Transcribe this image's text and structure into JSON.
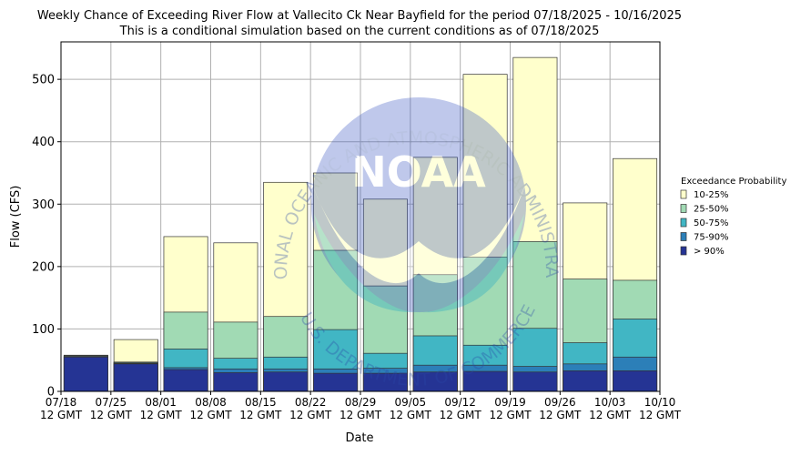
{
  "chart_data": {
    "type": "bar",
    "title": "Weekly Chance of Exceeding River Flow at Vallecito Ck Near Bayfield for the period 07/18/2025 - 10/16/2025",
    "subtitle": "This is a conditional simulation based on the current conditions as of 07/18/2025",
    "xlabel": "Date",
    "ylabel": "Flow (CFS)",
    "ylim": [
      0,
      560
    ],
    "yticks": [
      0,
      100,
      200,
      300,
      400,
      500
    ],
    "grid": true,
    "x_tick_labels": [
      [
        "07/18",
        "12 GMT"
      ],
      [
        "07/25",
        "12 GMT"
      ],
      [
        "08/01",
        "12 GMT"
      ],
      [
        "08/08",
        "12 GMT"
      ],
      [
        "08/15",
        "12 GMT"
      ],
      [
        "08/22",
        "12 GMT"
      ],
      [
        "08/29",
        "12 GMT"
      ],
      [
        "09/05",
        "12 GMT"
      ],
      [
        "09/12",
        "12 GMT"
      ],
      [
        "09/19",
        "12 GMT"
      ],
      [
        "09/26",
        "12 GMT"
      ],
      [
        "10/03",
        "12 GMT"
      ],
      [
        "10/10",
        "12 GMT"
      ]
    ],
    "legend": {
      "title": "Exceedance Probability",
      "position": "right",
      "entries": [
        {
          "label": "10-25%",
          "color": "#ffffcc"
        },
        {
          "label": "25-50%",
          "color": "#a1dab4"
        },
        {
          "label": "50-75%",
          "color": "#41b6c4"
        },
        {
          "label": "75-90%",
          "color": "#2c7fb8"
        },
        {
          "label": "> 90%",
          "color": "#253494"
        }
      ]
    },
    "series": [
      {
        "name": "10-25%",
        "color": "#ffffcc",
        "values": [
          58,
          83,
          248,
          238,
          335,
          350,
          308,
          375,
          508,
          535,
          302,
          373
        ]
      },
      {
        "name": "25-50%",
        "color": "#a1dab4",
        "values": [
          57,
          47,
          127,
          111,
          120,
          226,
          169,
          187,
          215,
          240,
          180,
          178
        ]
      },
      {
        "name": "50-75%",
        "color": "#41b6c4",
        "values": [
          56,
          46,
          68,
          53,
          55,
          99,
          61,
          89,
          74,
          101,
          78,
          116
        ]
      },
      {
        "name": "75-90%",
        "color": "#2c7fb8",
        "values": [
          55,
          45,
          38,
          36,
          36,
          36,
          37,
          42,
          42,
          40,
          44,
          55
        ]
      },
      {
        "name": "> 90%",
        "color": "#253494",
        "values": [
          55,
          44,
          35,
          30,
          31,
          29,
          29,
          31,
          32,
          31,
          33,
          33
        ]
      }
    ],
    "watermark": {
      "text_top": "NATIONAL OCEANIC AND ATMOSPHERIC ADMINISTRATION",
      "text_bottom": "U.S. DEPARTMENT OF COMMERCE",
      "logo": "NOAA"
    }
  }
}
